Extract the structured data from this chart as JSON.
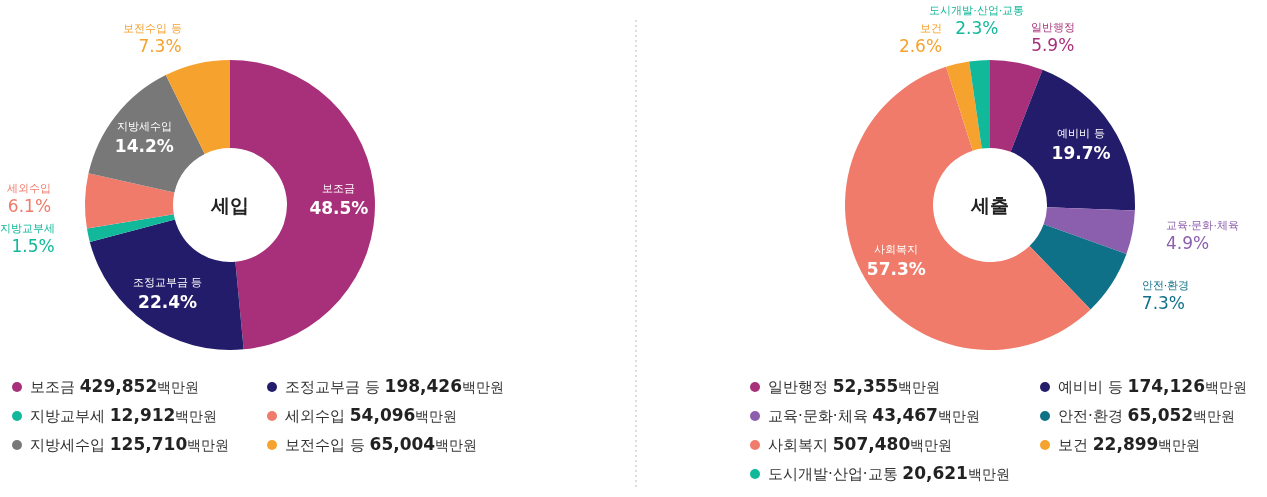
{
  "chart_data": [
    {
      "type": "donut",
      "title": "세입",
      "ylabel": "백만원",
      "categories": [
        "보조금",
        "조정교부금 등",
        "지방교부세",
        "세외수입",
        "지방세수입",
        "보전수입 등"
      ],
      "values": [
        48.5,
        22.4,
        1.5,
        6.1,
        14.2,
        7.3
      ],
      "value_labels": [
        "48.5%",
        "22.4%",
        "1.5%",
        "6.1%",
        "14.2%",
        "7.3%"
      ],
      "colors": [
        "#a8307a",
        "#231c6b",
        "#12b89a",
        "#f07b6a",
        "#787878",
        "#f6a22e"
      ],
      "legend": "bottom",
      "annotations": [
        "429,852",
        "198,426",
        "12,912",
        "54,096",
        "125,710",
        "65,004"
      ]
    },
    {
      "type": "donut",
      "title": "세출",
      "ylabel": "백만원",
      "categories": [
        "일반행정",
        "예비비 등",
        "교육·문화·체육",
        "안전·환경",
        "사회복지",
        "보건",
        "도시개발·산업·교통"
      ],
      "values": [
        5.9,
        19.7,
        4.9,
        7.3,
        57.3,
        2.6,
        2.3
      ],
      "value_labels": [
        "5.9%",
        "19.7%",
        "4.9%",
        "7.3%",
        "57.3%",
        "2.6%",
        "2.3%"
      ],
      "colors": [
        "#a8307a",
        "#231c6b",
        "#8c5fae",
        "#0f7188",
        "#f07b6a",
        "#f6a22e",
        "#12b89a"
      ],
      "legend": "bottom",
      "annotations": [
        "52,355",
        "174,126",
        "43,467",
        "65,052",
        "507,480",
        "22,899",
        "20,621"
      ]
    }
  ]
}
